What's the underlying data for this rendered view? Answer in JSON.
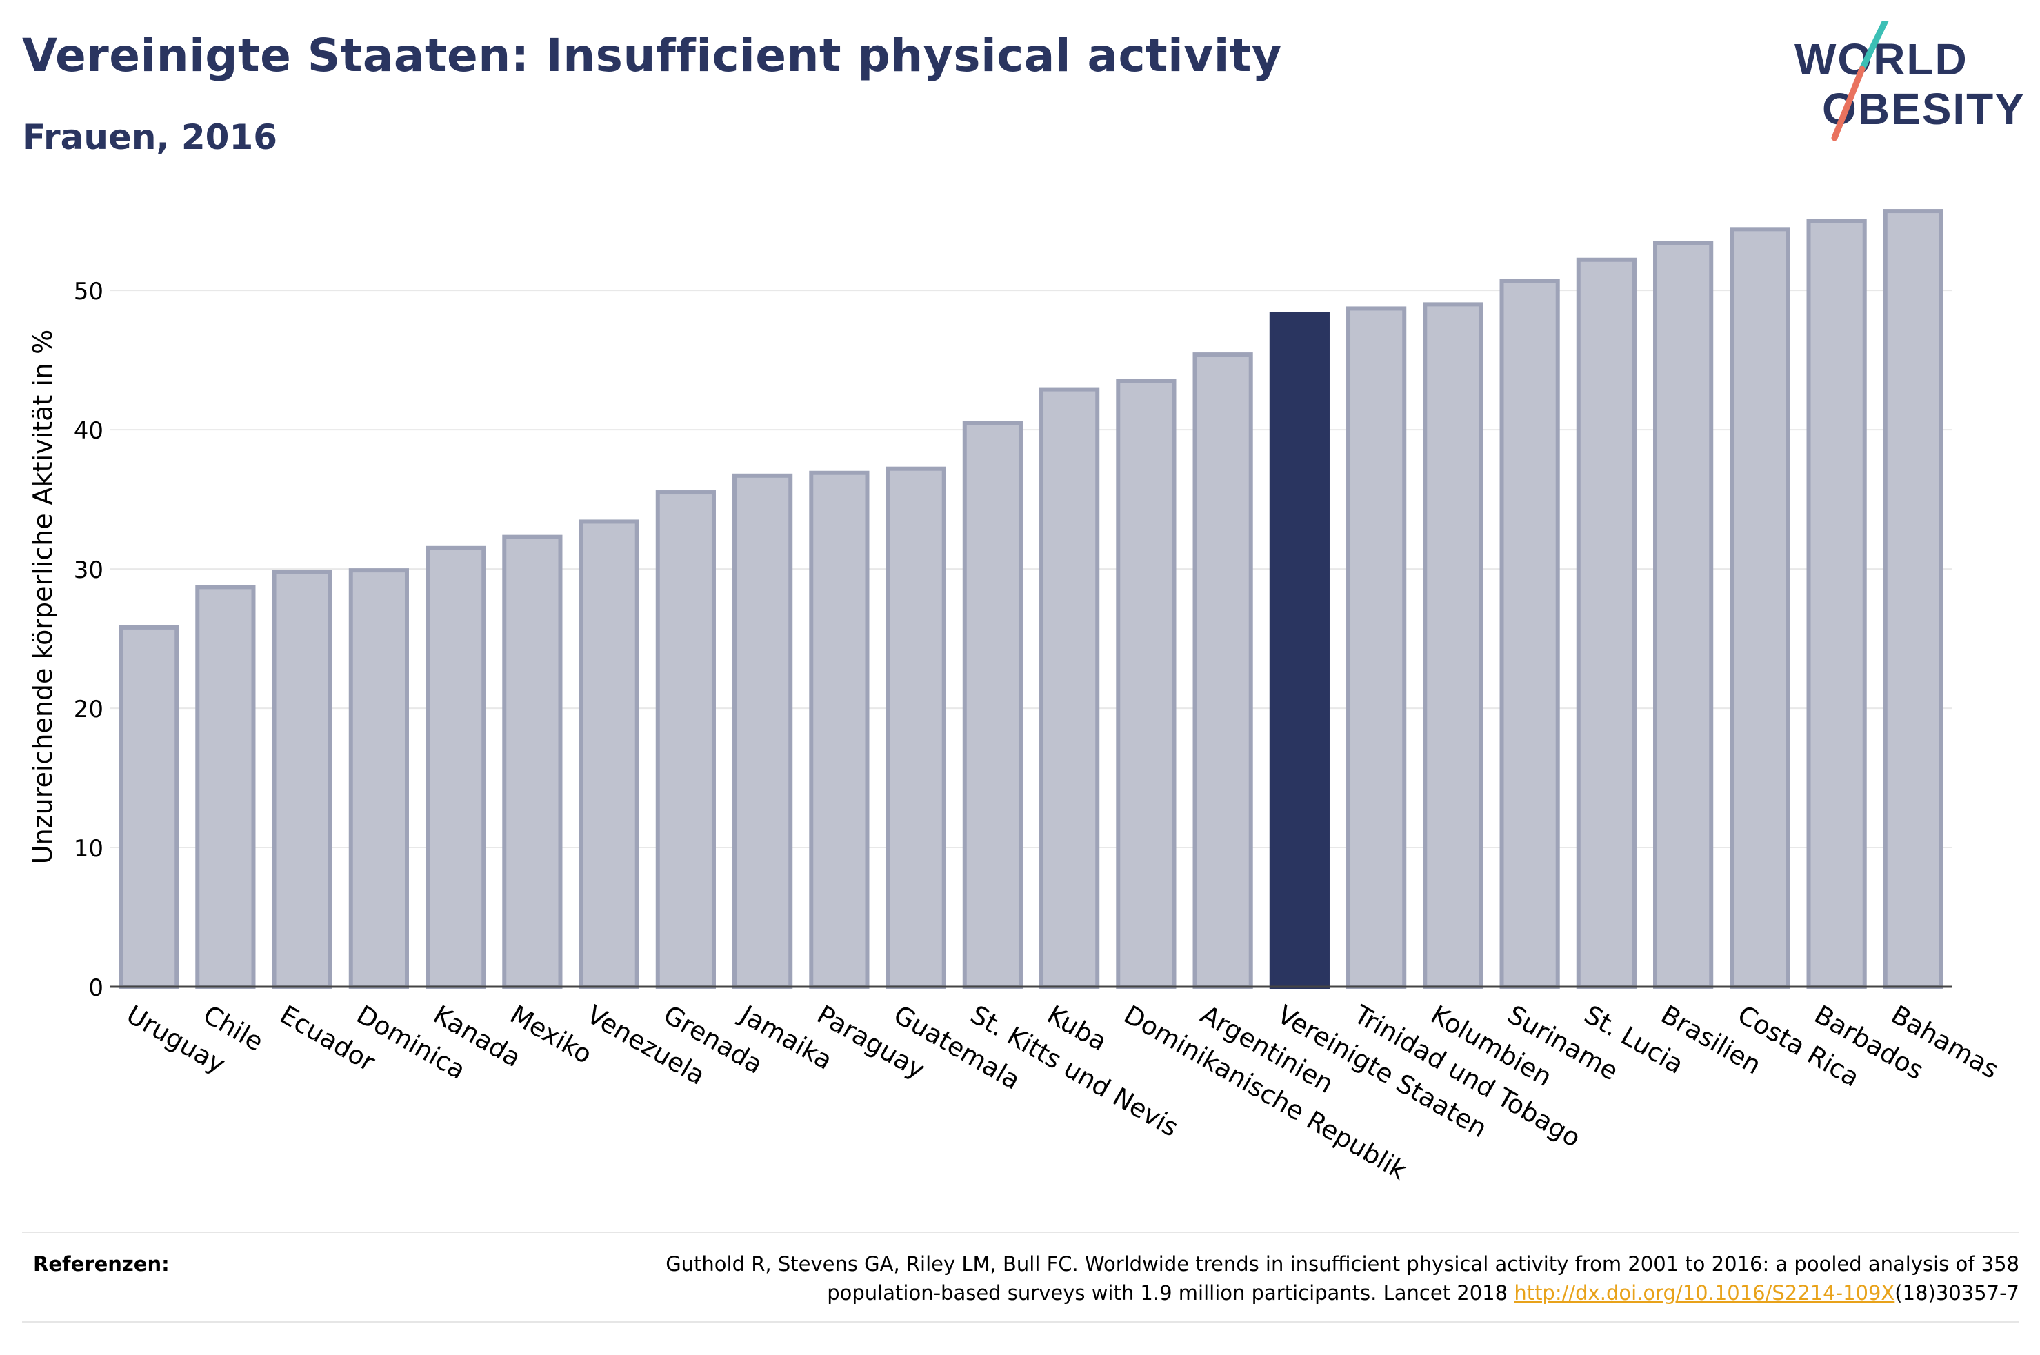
{
  "header": {
    "title": "Vereinigte Staaten: Insufficient physical activity",
    "subtitle": "Frauen, 2016"
  },
  "logo": {
    "line1": "WORLD",
    "line2": "OBESITY"
  },
  "colors": {
    "title": "#2a3560",
    "bar_default": "#bfc2cf",
    "bar_default_stroke": "#9ea3b8",
    "bar_highlight": "#2a3560",
    "logo_text": "#2a3560",
    "logo_teal": "#3bbfb5",
    "logo_coral": "#e9725e"
  },
  "chart_data": {
    "type": "bar",
    "title": "Vereinigte Staaten: Insufficient physical activity",
    "subtitle": "Frauen, 2016",
    "ylabel": "Unzureichende körperliche Aktivität in %",
    "xlabel": "",
    "ylim": [
      0,
      56
    ],
    "yticks": [
      0,
      10,
      20,
      30,
      40,
      50
    ],
    "grid": true,
    "highlight": "Vereinigte Staaten",
    "categories": [
      "Uruguay",
      "Chile",
      "Ecuador",
      "Dominica",
      "Kanada",
      "Mexiko",
      "Venezuela",
      "Grenada",
      "Jamaika",
      "Paraguay",
      "Guatemala",
      "St. Kitts und Nevis",
      "Kuba",
      "Dominikanische Republik",
      "Argentinien",
      "Vereinigte Staaten",
      "Trinidad und Tobago",
      "Kolumbien",
      "Suriname",
      "St. Lucia",
      "Brasilien",
      "Costa Rica",
      "Barbados",
      "Bahamas"
    ],
    "values": [
      25.8,
      28.7,
      29.8,
      29.9,
      31.5,
      32.3,
      33.4,
      35.5,
      36.7,
      36.9,
      37.2,
      40.5,
      42.9,
      43.5,
      45.4,
      48.3,
      48.7,
      49.0,
      50.7,
      52.2,
      53.4,
      54.4,
      55.0,
      55.7
    ]
  },
  "references": {
    "label": "Referenzen:",
    "line1": "Guthold R, Stevens GA, Riley LM, Bull FC. Worldwide trends in insufficient physical activity from 2001 to 2016: a pooled analysis of 358",
    "line2_pre": "population-based surveys with 1.9 million participants. Lancet 2018 ",
    "link": "http://dx.doi.org/10.1016/S2214-109X",
    "line2_post": "(18)30357-7"
  }
}
